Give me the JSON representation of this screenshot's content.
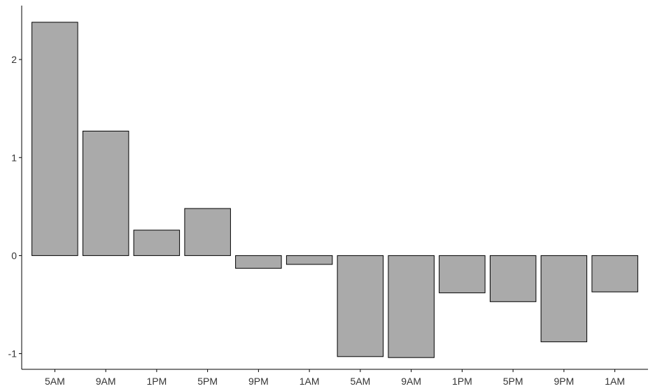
{
  "chart_data": {
    "type": "bar",
    "categories": [
      "5AM",
      "9AM",
      "1PM",
      "5PM",
      "9PM",
      "1AM",
      "5AM",
      "9AM",
      "1PM",
      "5PM",
      "9PM",
      "1AM"
    ],
    "values": [
      2.38,
      1.27,
      0.26,
      0.48,
      -0.13,
      -0.09,
      -1.03,
      -1.04,
      -0.38,
      -0.47,
      -0.88,
      -0.37
    ],
    "yticks": [
      -1,
      0,
      1,
      2
    ],
    "ytick_labels": [
      "-1",
      "0",
      "1",
      "2"
    ],
    "ylim": [
      -1.16,
      2.55
    ],
    "grid": false,
    "bar_color": "#aaaaaa",
    "bar_edge_color": "#000000",
    "title": "",
    "xlabel": "",
    "ylabel": ""
  }
}
